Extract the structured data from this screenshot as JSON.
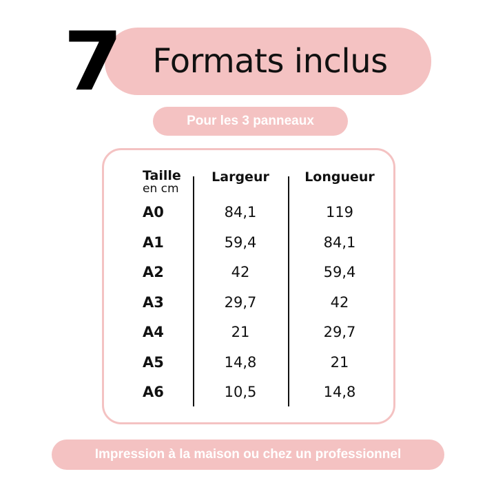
{
  "title": {
    "number": "7",
    "text": "Formats inclus"
  },
  "subtitle": "Pour les 3 panneaux",
  "table": {
    "headers": {
      "size": "Taille",
      "unit": "en cm",
      "width": "Largeur",
      "length": "Longueur"
    },
    "rows": [
      {
        "size": "A0",
        "width": "84,1",
        "length": "119"
      },
      {
        "size": "A1",
        "width": "59,4",
        "length": "84,1"
      },
      {
        "size": "A2",
        "width": "42",
        "length": "59,4"
      },
      {
        "size": "A3",
        "width": "29,7",
        "length": "42"
      },
      {
        "size": "A4",
        "width": "21",
        "length": "29,7"
      },
      {
        "size": "A5",
        "width": "14,8",
        "length": "21"
      },
      {
        "size": "A6",
        "width": "10,5",
        "length": "14,8"
      }
    ]
  },
  "footer": "Impression à la maison ou chez un professionnel",
  "colors": {
    "accent": "#f4c2c2",
    "text": "#111111"
  }
}
